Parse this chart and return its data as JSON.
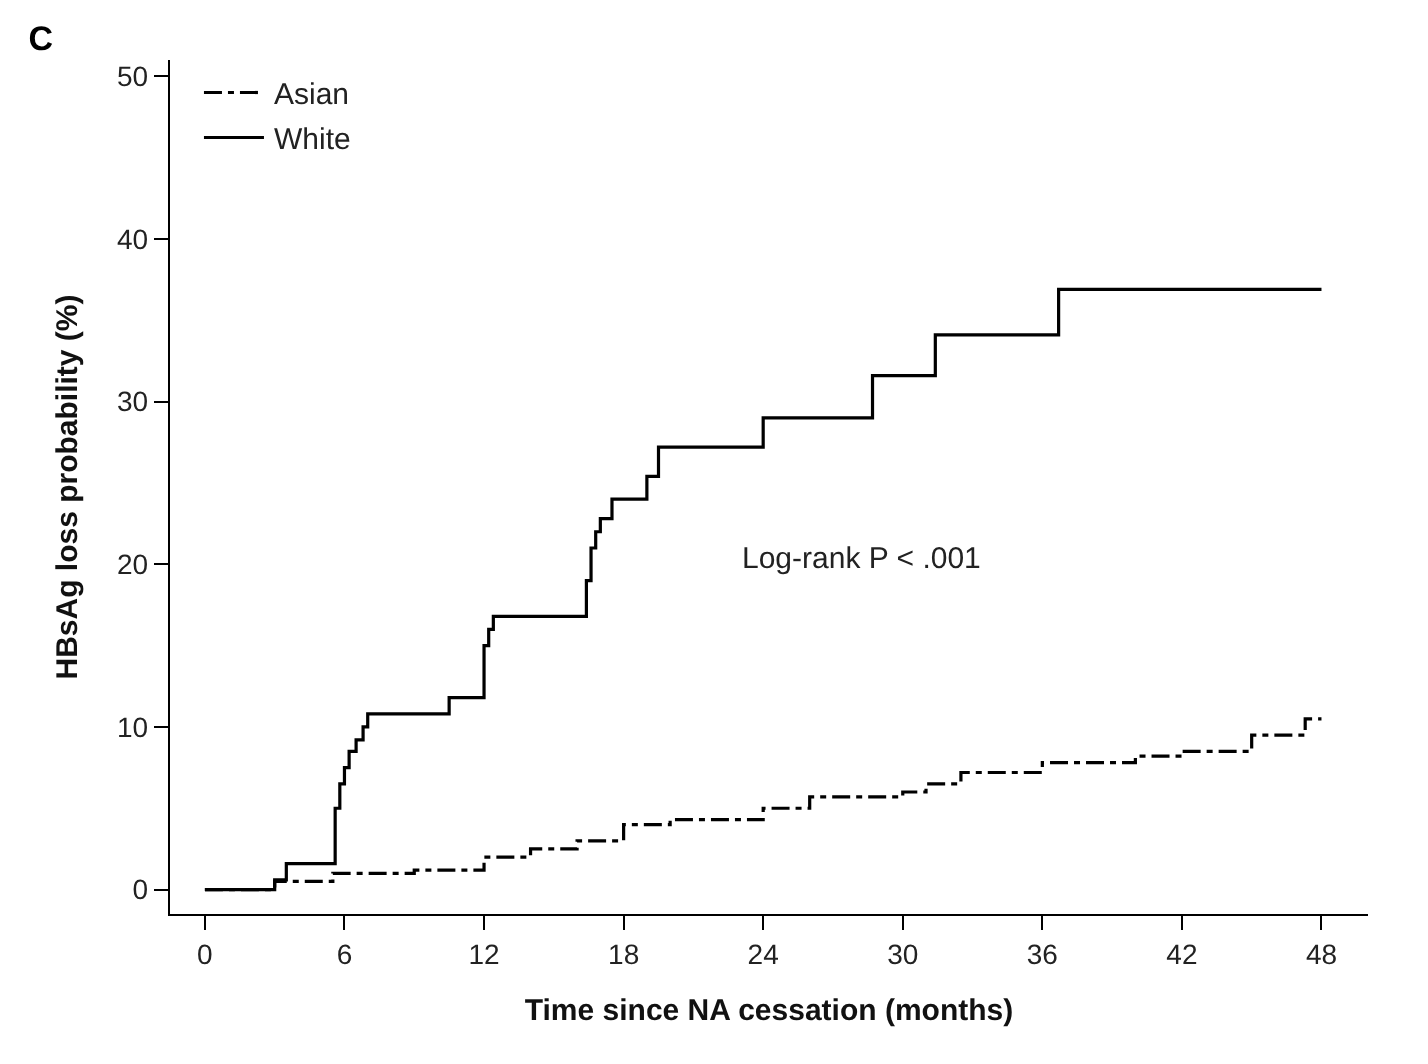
{
  "chart_data": {
    "type": "step",
    "title": "C",
    "xlabel": "Time since NA cessation (months)",
    "ylabel": "HBsAg loss probability (%)",
    "xlim": [
      -1.5,
      50
    ],
    "ylim": [
      -1.5,
      51
    ],
    "xticks": [
      0,
      6,
      12,
      18,
      24,
      30,
      36,
      42,
      48
    ],
    "yticks": [
      0,
      10,
      20,
      30,
      40,
      50
    ],
    "legend": "top left",
    "marker": "none",
    "annotations": [
      "Log-rank P < .001"
    ],
    "series": [
      {
        "name": "Asian",
        "color": "#000000",
        "line_style": "dashdot",
        "x": [
          0,
          3,
          5.5,
          9,
          12,
          14,
          16,
          18,
          20,
          24,
          26,
          30,
          31,
          32.5,
          36,
          40,
          42,
          45,
          47.3,
          48
        ],
        "values": [
          0,
          0.5,
          1,
          1.2,
          2,
          2.5,
          3,
          4,
          4.3,
          5,
          5.7,
          6,
          6.5,
          7.2,
          7.8,
          8.2,
          8.5,
          9.5,
          10.5,
          10.5
        ]
      },
      {
        "name": "White",
        "color": "#000000",
        "line_style": "solid",
        "x": [
          0,
          3,
          3.5,
          5.6,
          5.8,
          6,
          6.2,
          6.5,
          6.8,
          7,
          10.5,
          12,
          12.2,
          12.4,
          16.4,
          16.6,
          16.8,
          17,
          17.5,
          19,
          19.5,
          24,
          28.7,
          31.4,
          36.7,
          48
        ],
        "values": [
          0,
          0.6,
          1.6,
          5,
          6.5,
          7.5,
          8.5,
          9.2,
          10,
          10.8,
          11.8,
          15,
          16,
          16.8,
          19,
          21,
          22,
          22.8,
          24,
          25.4,
          27.2,
          29,
          31.6,
          34.1,
          36.9,
          36.9
        ]
      }
    ]
  }
}
